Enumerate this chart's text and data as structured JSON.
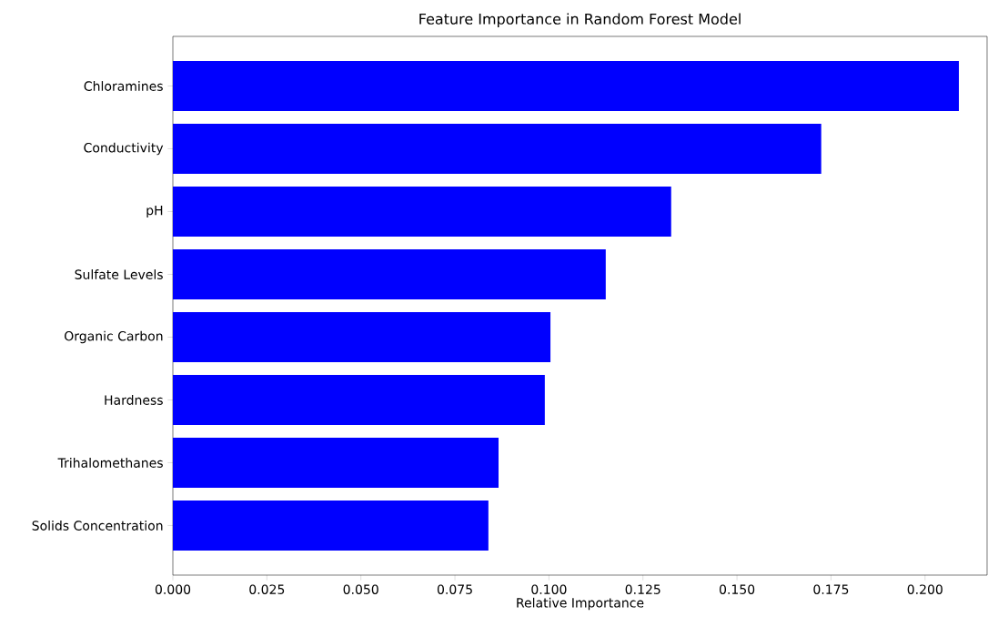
{
  "chart_data": {
    "type": "bar",
    "orientation": "horizontal",
    "title": "Feature Importance in Random Forest Model",
    "xlabel": "Relative Importance",
    "categories": [
      "Chloramines",
      "Conductivity",
      "pH",
      "Sulfate Levels",
      "Organic Carbon",
      "Hardness",
      "Trihalomethanes",
      "Solids Concentration"
    ],
    "values": [
      0.209,
      0.1724,
      0.1325,
      0.1151,
      0.1004,
      0.0989,
      0.0866,
      0.0839
    ],
    "color": "#0000ff",
    "xlim": [
      0,
      0.2165
    ],
    "xticks": [
      {
        "value": 0,
        "label": "0.000"
      },
      {
        "value": 0.025,
        "label": "0.025"
      },
      {
        "value": 0.05,
        "label": "0.050"
      },
      {
        "value": 0.075,
        "label": "0.075"
      },
      {
        "value": 0.1,
        "label": "0.100"
      },
      {
        "value": 0.125,
        "label": "0.125"
      },
      {
        "value": 0.15,
        "label": "0.150"
      },
      {
        "value": 0.175,
        "label": "0.175"
      },
      {
        "value": 0.2,
        "label": "0.200"
      }
    ]
  }
}
